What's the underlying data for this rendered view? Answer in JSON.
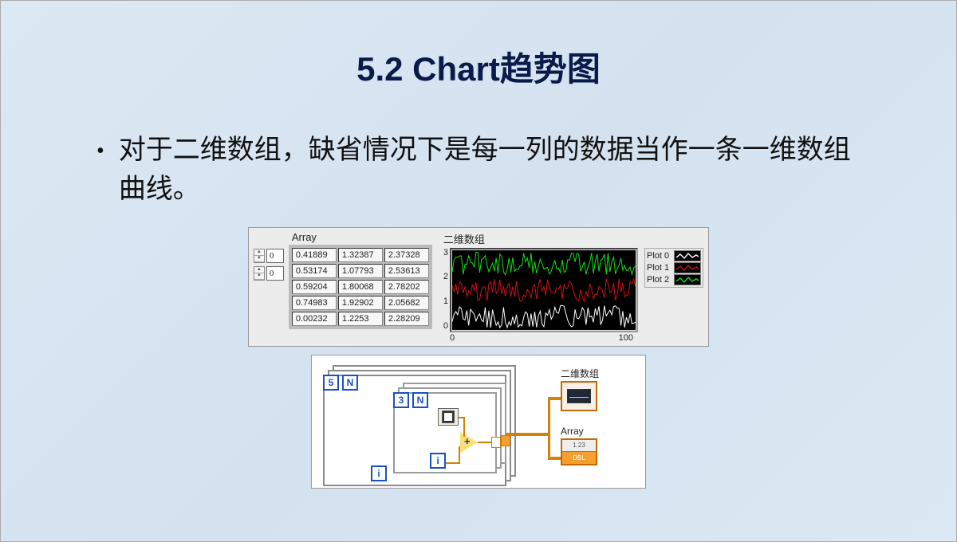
{
  "colors": {
    "slide_bg_from": "#dce8f3",
    "slide_bg_to": "#d4e2f0",
    "title_color": "#0a1a4a",
    "panel_bg": "#ececed",
    "plot_bg": "#000000",
    "loop_border": "#8a8a8a",
    "node_blue": "#1850c8",
    "wire_orange": "#d88000",
    "terminal_border": "#c46a00"
  },
  "title": "5.2 Chart趋势图",
  "bullet": "对于二维数组，缺省情况下是每一列的数据当作一条一维数组曲线。",
  "array": {
    "label": "Array",
    "indices": [
      "0",
      "0"
    ],
    "rows": [
      [
        "0.41889",
        "1.32387",
        "2.37328"
      ],
      [
        "0.53174",
        "1.07793",
        "2.53613"
      ],
      [
        "0.59204",
        "1.80068",
        "2.78202"
      ],
      [
        "0.74983",
        "1.92902",
        "2.05682"
      ],
      [
        "0.00232",
        "1.2253",
        "2.28209"
      ]
    ]
  },
  "chart": {
    "label": "二维数组",
    "yticks": [
      "3",
      "2",
      "1",
      "0"
    ],
    "xticks": [
      "0",
      "100"
    ],
    "xlim": [
      0,
      100
    ],
    "ylim": [
      0,
      3
    ],
    "series": [
      {
        "name": "Plot 0",
        "color": "#ffffff",
        "offset": 0.5
      },
      {
        "name": "Plot 1",
        "color": "#d01010",
        "offset": 1.5
      },
      {
        "name": "Plot 2",
        "color": "#10e010",
        "offset": 2.5
      }
    ],
    "legend": [
      "Plot 0",
      "Plot 1",
      "Plot 2"
    ]
  },
  "diagram": {
    "outer_const": "5",
    "outer_N": "N",
    "outer_i": "i",
    "inner_const": "3",
    "inner_N": "N",
    "inner_i": "i",
    "add_symbol": "+",
    "chart_terminal_label": "二维数组",
    "array_terminal_label": "Array",
    "array_cell_text": "1.23",
    "array_type_text": "DBL"
  }
}
